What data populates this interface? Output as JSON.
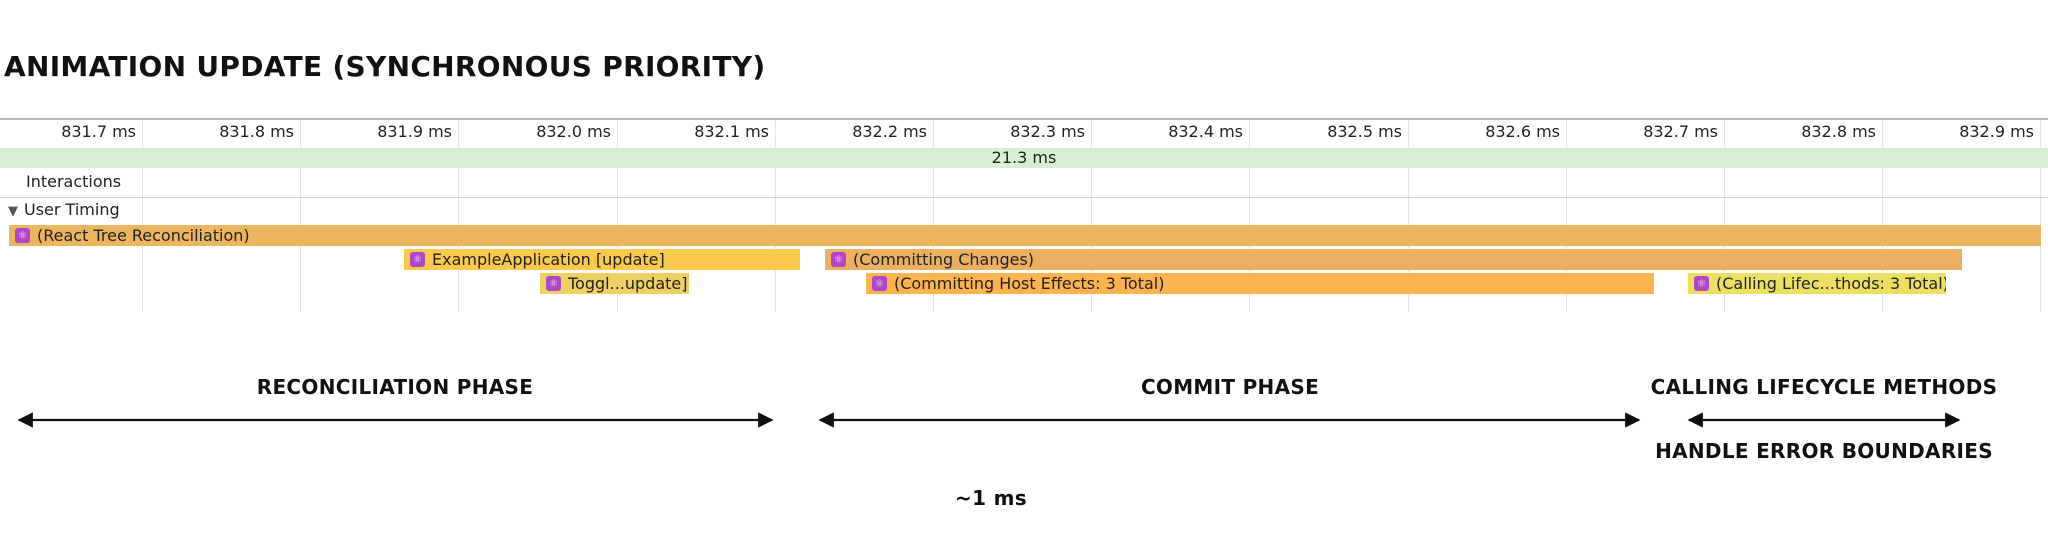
{
  "title": "ANIMATION UPDATE (SYNCHRONOUS PRIORITY)",
  "ticks": [
    "831.7 ms",
    "831.8 ms",
    "831.9 ms",
    "832.0 ms",
    "832.1 ms",
    "832.2 ms",
    "832.3 ms",
    "832.4 ms",
    "832.5 ms",
    "832.6 ms",
    "832.7 ms",
    "832.8 ms",
    "832.9 ms"
  ],
  "interaction_duration": "21.3 ms",
  "rows": {
    "interactions": "Interactions",
    "user_timing": "User Timing",
    "collapse_glyph": "▼"
  },
  "marks": {
    "react_tree": "(React Tree Reconciliation)",
    "example_app": "ExampleApplication [update]",
    "toggle": "Toggl...update]",
    "committing": "(Committing Changes)",
    "host_effects": "(Committing Host Effects: 3 Total)",
    "lifecycle": "(Calling Lifec...thods: 3 Total)",
    "icon_glyph": "⚛"
  },
  "colors": {
    "reconciliation": "#ecb55f",
    "component": "#fbc94b",
    "toggle": "#efd062",
    "committing": "#ecb062",
    "host_effects": "#fdb450",
    "lifecycle": "#ece064",
    "interaction_bar": "#d7f0d2",
    "react_icon": "#b047c6"
  },
  "phases": {
    "reconciliation": "RECONCILIATION PHASE",
    "commit": "COMMIT PHASE",
    "lifecycle": "CALLING LIFECYCLE METHODS",
    "error": "HANDLE ERROR BOUNDARIES"
  },
  "duration_note": "~1 ms"
}
